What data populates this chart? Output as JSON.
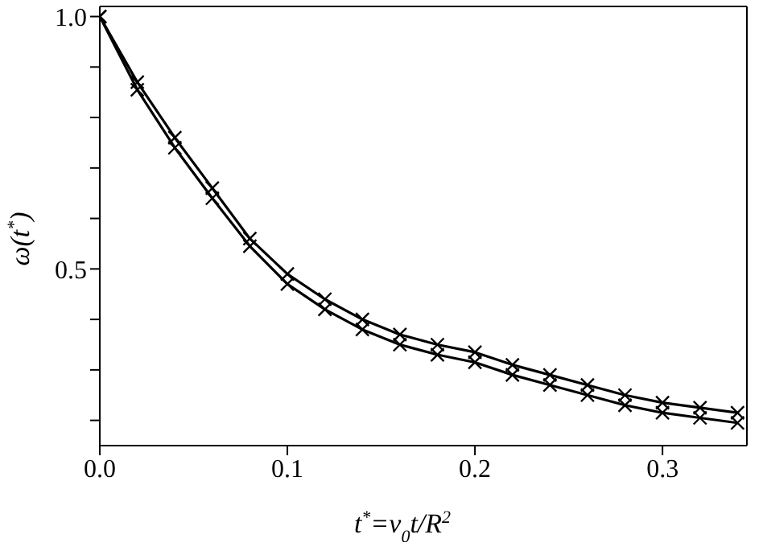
{
  "chart_data": {
    "type": "line",
    "xlabel": "t$^{*}$=ν$_{0}$t/R$^{2}$",
    "ylabel": "ω(t$^{*}$)",
    "x": [
      0,
      0.02,
      0.04,
      0.06,
      0.08,
      0.1,
      0.12,
      0.14,
      0.16,
      0.18,
      0.2,
      0.22,
      0.24,
      0.26,
      0.28,
      0.3,
      0.32,
      0.34
    ],
    "series": [
      {
        "color": "#000000",
        "values": [
          1.0,
          0.87,
          0.76,
          0.66,
          0.56,
          0.49,
          0.44,
          0.4,
          0.37,
          0.35,
          0.335,
          0.31,
          0.29,
          0.27,
          0.25,
          0.235,
          0.225,
          0.215
        ]
      },
      {
        "color": "#000000",
        "values": [
          1.0,
          0.855,
          0.74,
          0.64,
          0.545,
          0.47,
          0.42,
          0.38,
          0.35,
          0.33,
          0.315,
          0.29,
          0.27,
          0.25,
          0.23,
          0.215,
          0.205,
          0.195
        ]
      }
    ],
    "xlim": [
      0,
      0.345
    ],
    "ylim": [
      0.15,
      1.02
    ],
    "xticks": [
      {
        "value": 0,
        "label": "0.0"
      },
      0.1,
      0.2,
      0.3
    ],
    "yticks": [
      {
        "value": 0.2,
        "label": null
      },
      {
        "value": 0.3,
        "label": null
      },
      {
        "value": 0.4,
        "label": null
      },
      0.5,
      {
        "value": 0.6,
        "label": null
      },
      {
        "value": 0.7,
        "label": null
      },
      {
        "value": 0.8,
        "label": null
      },
      {
        "value": 0.9,
        "label": null
      },
      {
        "value": 1.0,
        "label": "1.0"
      }
    ],
    "grid": false,
    "legend": false,
    "marker": "cross",
    "line_style": "solid"
  }
}
